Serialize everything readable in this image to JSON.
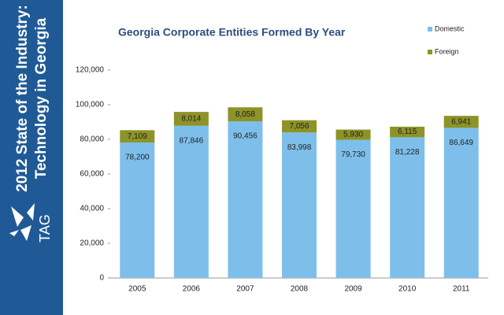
{
  "sidebar": {
    "title_lines": [
      "2012 State of the Industry:",
      "Technology in Georgia"
    ],
    "logo": "TAG"
  },
  "chart_data": {
    "type": "stacked_bar",
    "title": "Georgia Corporate Entities Formed By Year",
    "categories": [
      "2005",
      "2006",
      "2007",
      "2008",
      "2009",
      "2010",
      "2011"
    ],
    "series": [
      {
        "name": "Domestic",
        "color": "#7dbfea",
        "values": [
          78200,
          87846,
          90456,
          83998,
          79730,
          81228,
          86649
        ],
        "value_labels": [
          "78,200",
          "87,846",
          "90,456",
          "83,998",
          "79,730",
          "81,228",
          "86,649"
        ]
      },
      {
        "name": "Foreign",
        "color": "#8d9327",
        "values": [
          7109,
          8014,
          8058,
          7056,
          5930,
          6115,
          6941
        ],
        "value_labels": [
          "7,109",
          "8,014",
          "8,058",
          "7,056",
          "5,930",
          "6,115",
          "6,941"
        ]
      }
    ],
    "ylim": [
      0,
      120000
    ],
    "yticks": [
      0,
      {
        "value": 20000,
        "label": "20,000"
      },
      {
        "value": 40000,
        "label": "40,000"
      },
      {
        "value": 60000,
        "label": "60,000"
      },
      {
        "value": 80000,
        "label": "80,000"
      },
      {
        "value": 100000,
        "label": "100,000"
      },
      {
        "value": 120000,
        "label": "120,000"
      }
    ],
    "grid": false,
    "legend": "top-right"
  }
}
